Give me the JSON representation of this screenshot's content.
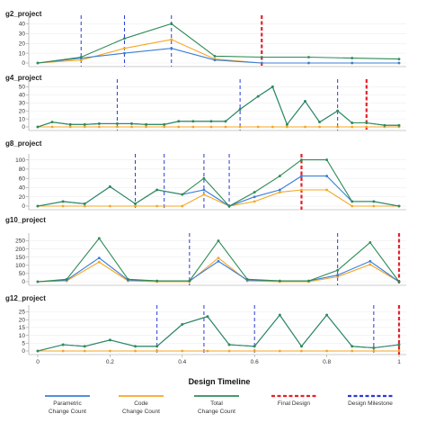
{
  "colors": {
    "parametric": "#3b7dd8",
    "code": "#f5a623",
    "total": "#2e8b57",
    "final": "#e8202a",
    "milestone": "#2a3bd6"
  },
  "chart_data": [
    {
      "type": "line",
      "title": "g2_project",
      "ylim": [
        0,
        45
      ],
      "yticks": [
        0,
        10,
        20,
        30,
        40
      ],
      "milestones": [
        0.12,
        0.24,
        0.37
      ],
      "final": 0.62,
      "series": [
        {
          "name": "Parametric Change Count",
          "x": [
            0,
            0.12,
            0.24,
            0.37,
            0.49,
            0.62,
            0.75,
            0.87,
            1.0
          ],
          "y": [
            0,
            5,
            10,
            15,
            3,
            0,
            0,
            0,
            0
          ]
        },
        {
          "name": "Code Change Count",
          "x": [
            0,
            0.12,
            0.24,
            0.37,
            0.49,
            0.62,
            0.75,
            0.87,
            1.0
          ],
          "y": [
            0,
            3,
            15,
            24,
            4,
            0,
            0,
            0,
            0
          ]
        },
        {
          "name": "Total Change Count",
          "x": [
            0,
            0.12,
            0.24,
            0.37,
            0.49,
            0.62,
            0.75,
            0.87,
            1.0
          ],
          "y": [
            0,
            6,
            25,
            40,
            7,
            6,
            6,
            5,
            4
          ]
        }
      ]
    },
    {
      "type": "line",
      "title": "g4_project",
      "ylim": [
        0,
        55
      ],
      "yticks": [
        0,
        10,
        20,
        30,
        40,
        50
      ],
      "milestones": [
        0.22,
        0.56,
        0.83
      ],
      "final": 0.91,
      "series": [
        {
          "name": "Parametric Change Count",
          "x": [
            0,
            0.04,
            0.09,
            0.13,
            0.17,
            0.22,
            0.26,
            0.3,
            0.35,
            0.39,
            0.43,
            0.48,
            0.52,
            0.56,
            0.61,
            0.65,
            0.69,
            0.74,
            0.78,
            0.83,
            0.87,
            0.91,
            0.96,
            1.0
          ],
          "y": [
            0,
            6,
            3,
            3,
            4,
            4,
            4,
            3,
            3,
            7,
            7,
            7,
            7,
            22,
            38,
            50,
            3,
            32,
            6,
            20,
            5,
            5,
            2,
            2
          ]
        },
        {
          "name": "Code Change Count",
          "x": [
            0,
            0.04,
            0.09,
            0.13,
            0.17,
            0.22,
            0.26,
            0.3,
            0.35,
            0.39,
            0.43,
            0.48,
            0.52,
            0.56,
            0.61,
            0.65,
            0.69,
            0.74,
            0.78,
            0.83,
            0.87,
            0.91,
            0.96,
            1.0
          ],
          "y": [
            0,
            0,
            0,
            0,
            0,
            0,
            0,
            0,
            0,
            0,
            0,
            0,
            0,
            0,
            0,
            0,
            0,
            0,
            0,
            0,
            0,
            0,
            0,
            0
          ]
        },
        {
          "name": "Total Change Count",
          "x": [
            0,
            0.04,
            0.09,
            0.13,
            0.17,
            0.22,
            0.26,
            0.3,
            0.35,
            0.39,
            0.43,
            0.48,
            0.52,
            0.56,
            0.61,
            0.65,
            0.69,
            0.74,
            0.78,
            0.83,
            0.87,
            0.91,
            0.96,
            1.0
          ],
          "y": [
            0,
            6,
            3,
            3,
            4,
            4,
            4,
            3,
            3,
            7,
            7,
            7,
            7,
            22,
            38,
            50,
            3,
            32,
            6,
            20,
            5,
            5,
            2,
            2
          ]
        }
      ]
    },
    {
      "type": "line",
      "title": "g8_project",
      "ylim": [
        0,
        105
      ],
      "yticks": [
        0,
        20,
        40,
        60,
        80,
        100
      ],
      "milestones": [
        0.27,
        0.35,
        0.46,
        0.53
      ],
      "final": 0.73,
      "series": [
        {
          "name": "Parametric Change Count",
          "x": [
            0,
            0.07,
            0.13,
            0.2,
            0.27,
            0.33,
            0.4,
            0.46,
            0.53,
            0.6,
            0.67,
            0.73,
            0.8,
            0.87,
            0.93,
            1.0
          ],
          "y": [
            0,
            10,
            5,
            42,
            5,
            35,
            25,
            35,
            0,
            20,
            35,
            65,
            65,
            10,
            10,
            0
          ]
        },
        {
          "name": "Code Change Count",
          "x": [
            0,
            0.07,
            0.13,
            0.2,
            0.27,
            0.33,
            0.4,
            0.46,
            0.53,
            0.6,
            0.67,
            0.73,
            0.8,
            0.87,
            0.93,
            1.0
          ],
          "y": [
            0,
            0,
            0,
            0,
            0,
            0,
            0,
            25,
            0,
            10,
            30,
            35,
            35,
            0,
            0,
            0
          ]
        },
        {
          "name": "Total Change Count",
          "x": [
            0,
            0.07,
            0.13,
            0.2,
            0.27,
            0.33,
            0.4,
            0.46,
            0.53,
            0.6,
            0.67,
            0.73,
            0.8,
            0.87,
            0.93,
            1.0
          ],
          "y": [
            0,
            10,
            5,
            42,
            5,
            35,
            25,
            60,
            0,
            30,
            65,
            100,
            100,
            10,
            10,
            0
          ]
        }
      ]
    },
    {
      "type": "line",
      "title": "g10_project",
      "ylim": [
        0,
        275
      ],
      "yticks": [
        0,
        50,
        100,
        150,
        200,
        250
      ],
      "milestones": [
        0.42,
        0.83
      ],
      "final": 1.0,
      "series": [
        {
          "name": "Parametric Change Count",
          "x": [
            0,
            0.08,
            0.17,
            0.25,
            0.33,
            0.42,
            0.5,
            0.58,
            0.67,
            0.75,
            0.83,
            0.92,
            1.0
          ],
          "y": [
            0,
            10,
            145,
            10,
            5,
            5,
            125,
            10,
            5,
            5,
            40,
            125,
            0
          ]
        },
        {
          "name": "Code Change Count",
          "x": [
            0,
            0.08,
            0.17,
            0.25,
            0.33,
            0.42,
            0.5,
            0.58,
            0.67,
            0.75,
            0.83,
            0.92,
            1.0
          ],
          "y": [
            0,
            5,
            120,
            5,
            0,
            0,
            145,
            5,
            0,
            0,
            30,
            105,
            0
          ]
        },
        {
          "name": "Total Change Count",
          "x": [
            0,
            0.08,
            0.17,
            0.25,
            0.33,
            0.42,
            0.5,
            0.58,
            0.67,
            0.75,
            0.83,
            0.92,
            1.0
          ],
          "y": [
            0,
            15,
            265,
            15,
            5,
            5,
            250,
            15,
            5,
            5,
            70,
            240,
            0
          ]
        }
      ]
    },
    {
      "type": "line",
      "title": "g12_project",
      "ylim": [
        0,
        27
      ],
      "yticks": [
        0,
        5,
        10,
        15,
        20,
        25
      ],
      "milestones": [
        0.33,
        0.46,
        0.6,
        0.93
      ],
      "final": 1.0,
      "series": [
        {
          "name": "Parametric Change Count",
          "x": [
            0,
            0.07,
            0.13,
            0.2,
            0.27,
            0.33,
            0.4,
            0.47,
            0.53,
            0.6,
            0.67,
            0.73,
            0.8,
            0.87,
            0.93,
            1.0
          ],
          "y": [
            0,
            4,
            3,
            7,
            3,
            3,
            17,
            22,
            4,
            3,
            23,
            3,
            23,
            3,
            2,
            4
          ]
        },
        {
          "name": "Code Change Count",
          "x": [
            0,
            0.07,
            0.13,
            0.2,
            0.27,
            0.33,
            0.4,
            0.47,
            0.53,
            0.6,
            0.67,
            0.73,
            0.8,
            0.87,
            0.93,
            1.0
          ],
          "y": [
            0,
            0,
            0,
            0,
            0,
            0,
            0,
            0,
            0,
            0,
            0,
            0,
            0,
            0,
            0,
            0
          ]
        },
        {
          "name": "Total Change Count",
          "x": [
            0,
            0.07,
            0.13,
            0.2,
            0.27,
            0.33,
            0.4,
            0.47,
            0.53,
            0.6,
            0.67,
            0.73,
            0.8,
            0.87,
            0.93,
            1.0
          ],
          "y": [
            0,
            4,
            3,
            7,
            3,
            3,
            17,
            22,
            4,
            3,
            23,
            3,
            23,
            3,
            2,
            4
          ]
        }
      ]
    }
  ],
  "x_axis": {
    "label": "Design Timeline",
    "ticks": [
      "0",
      "0.2",
      "0.4",
      "0.6",
      "0.8",
      "1"
    ],
    "tick_values": [
      0,
      0.2,
      0.4,
      0.6,
      0.8,
      1.0
    ]
  },
  "legend": [
    {
      "key": "parametric",
      "line1": "Parametric",
      "line2": "Change Count",
      "dashed": false
    },
    {
      "key": "code",
      "line1": "Code",
      "line2": "Change Count",
      "dashed": false
    },
    {
      "key": "total",
      "line1": "Total",
      "line2": "Change Count",
      "dashed": false
    },
    {
      "key": "final",
      "line1": "Final Design",
      "line2": "",
      "dashed": true
    },
    {
      "key": "milestone",
      "line1": "Design Milestone",
      "line2": "",
      "dashed": true
    }
  ]
}
